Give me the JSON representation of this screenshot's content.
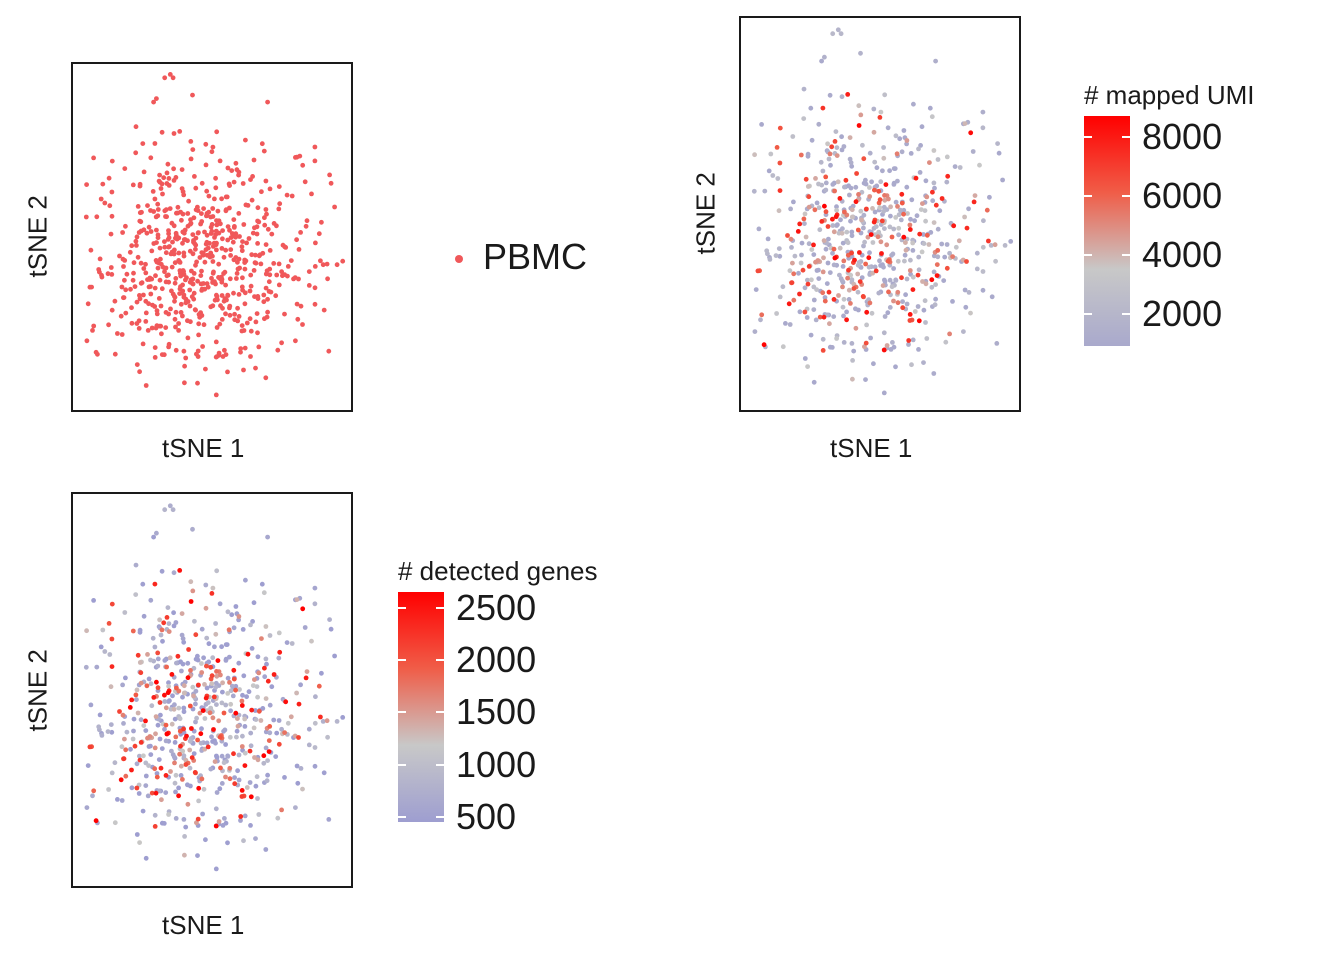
{
  "chart_data": [
    {
      "type": "scatter",
      "panel": "sample",
      "xlabel": "tSNE 1",
      "ylabel": "tSNE 2",
      "color_mode": "discrete",
      "legend": {
        "entries": [
          {
            "label": "PBMC",
            "color": "#f0585a"
          }
        ]
      },
      "n_points": 700,
      "grid": false
    },
    {
      "type": "scatter",
      "panel": "umi",
      "xlabel": "tSNE 1",
      "ylabel": "tSNE 2",
      "color_mode": "continuous",
      "colorbar": {
        "title": "# mapped UMI",
        "min": 900,
        "max": 8700,
        "ticks": [
          8000,
          6000,
          4000,
          2000
        ],
        "tick_labels": [
          "8000",
          "6000",
          "4000",
          "2000"
        ],
        "colors": [
          "#a9a9cc",
          "#c8c8c8",
          "#f05d48",
          "#ff0000"
        ]
      },
      "n_points": 700,
      "grid": false
    },
    {
      "type": "scatter",
      "panel": "genes",
      "xlabel": "tSNE 1",
      "ylabel": "tSNE 2",
      "color_mode": "continuous",
      "colorbar": {
        "title": "# detected genes",
        "min": 450,
        "max": 2650,
        "ticks": [
          2500,
          2000,
          1500,
          1000,
          500
        ],
        "tick_labels": [
          "2500",
          "2000",
          "1500",
          "1000",
          "500"
        ],
        "colors": [
          "#9e9ed0",
          "#c8c8c8",
          "#f05d48",
          "#ff0000"
        ]
      },
      "n_points": 700,
      "grid": false
    }
  ]
}
